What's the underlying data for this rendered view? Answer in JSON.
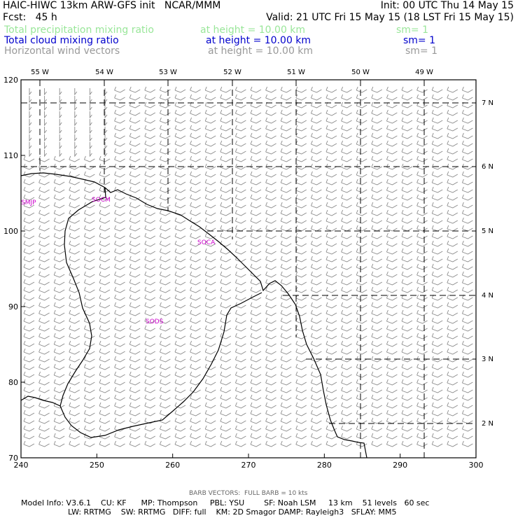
{
  "header": {
    "title": "HAIC-HIWC 13km ARW-GFS init   NCAR/MMM",
    "init": "Init: 00 UTC Thu 14 May 15",
    "fcst": "Fcst:   45 h",
    "valid": "Valid: 21 UTC Fri 15 May 15 (18 LST Fri 15 May 15)",
    "fields": [
      {
        "name": "Total precipitation mixing ratio",
        "height": "at height = 10.00 km",
        "sm": "sm= 1",
        "color": "#99e699"
      },
      {
        "name": "Total cloud mixing ratio",
        "height": "at height = 10.00 km",
        "sm": "sm= 1",
        "color": "#0000cc"
      },
      {
        "name": "Horizontal wind vectors",
        "height": "at height = 10.00 km",
        "sm": "sm= 1",
        "color": "#999999"
      }
    ]
  },
  "map": {
    "x_range": [
      240,
      300
    ],
    "y_range": [
      70,
      120
    ],
    "x_ticks": [
      "240",
      "250",
      "260",
      "270",
      "280",
      "290",
      "300"
    ],
    "y_ticks": [
      "70",
      "80",
      "90",
      "100",
      "110",
      "120"
    ],
    "lon_labels": [
      "55 W",
      "54 W",
      "53 W",
      "52 W",
      "51 W",
      "50 W",
      "49 W"
    ],
    "lat_labels": [
      "7 N",
      "6 N",
      "5 N",
      "4 N",
      "3 N",
      "2 N"
    ],
    "stations": [
      "SMJP",
      "SOCM",
      "SOCA",
      "SODS"
    ],
    "barb_color": "#888888",
    "coast_color": "#000000",
    "station_color": "#cc00cc"
  },
  "footer": {
    "barb_note": "BARB VECTORS:  FULL BARB = 10 kts",
    "line1": "Model Info: V3.6.1    CU: KF      MP: Thompson     PBL: YSU        SF: Noah LSM     13 km    51 levels   60 sec",
    "line2": "LW: RRTMG    SW: RRTMG   DIFF: full    KM: 2D Smagor DAMP: Rayleigh3   SFLAY: MM5"
  }
}
